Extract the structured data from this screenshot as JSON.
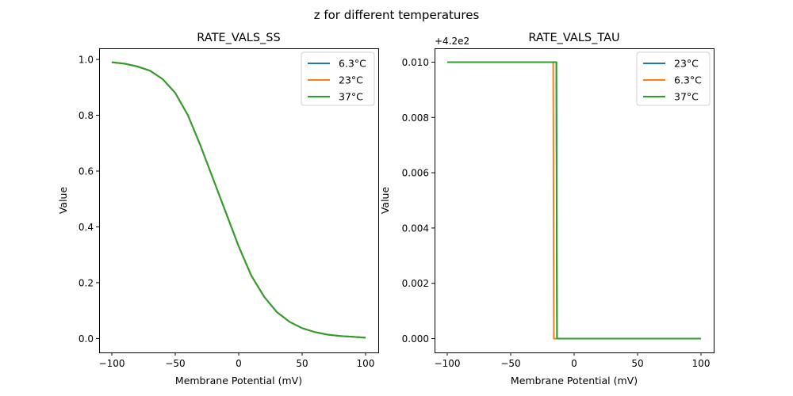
{
  "figure": {
    "suptitle": "z for different temperatures"
  },
  "chart_data": [
    {
      "type": "line",
      "title": "RATE_VALS_SS",
      "xlabel": "Membrane Potential (mV)",
      "ylabel": "Value",
      "xlim": [
        -110,
        110
      ],
      "ylim": [
        -0.05,
        1.04
      ],
      "xticks": [
        -100,
        -50,
        0,
        50,
        100
      ],
      "xtick_labels": [
        "−100",
        "−50",
        "0",
        "50",
        "100"
      ],
      "yticks": [
        0.0,
        0.2,
        0.4,
        0.6,
        0.8,
        1.0
      ],
      "ytick_labels": [
        "0.0",
        "0.2",
        "0.4",
        "0.6",
        "0.8",
        "1.0"
      ],
      "offset_text": "",
      "legend_position": "top-right",
      "x": [
        -100,
        -90,
        -80,
        -70,
        -60,
        -50,
        -40,
        -30,
        -20,
        -10,
        0,
        10,
        20,
        30,
        40,
        50,
        60,
        70,
        80,
        90,
        100
      ],
      "series": [
        {
          "name": "6.3°C",
          "color": "#1f77b4",
          "values": [
            0.99,
            0.985,
            0.975,
            0.96,
            0.93,
            0.88,
            0.8,
            0.69,
            0.57,
            0.45,
            0.33,
            0.225,
            0.15,
            0.095,
            0.06,
            0.037,
            0.023,
            0.014,
            0.009,
            0.006,
            0.003
          ]
        },
        {
          "name": "23°C",
          "color": "#ff7f0e",
          "values": [
            0.99,
            0.985,
            0.975,
            0.96,
            0.93,
            0.88,
            0.8,
            0.69,
            0.57,
            0.45,
            0.33,
            0.225,
            0.15,
            0.095,
            0.06,
            0.037,
            0.023,
            0.014,
            0.009,
            0.006,
            0.003
          ]
        },
        {
          "name": "37°C",
          "color": "#2ca02c",
          "values": [
            0.99,
            0.985,
            0.975,
            0.96,
            0.93,
            0.88,
            0.8,
            0.69,
            0.57,
            0.45,
            0.33,
            0.225,
            0.15,
            0.095,
            0.06,
            0.037,
            0.023,
            0.014,
            0.009,
            0.006,
            0.003
          ]
        }
      ]
    },
    {
      "type": "line",
      "title": "RATE_VALS_TAU",
      "xlabel": "Membrane Potential (mV)",
      "ylabel": "Value",
      "xlim": [
        -110,
        110
      ],
      "ylim": [
        -0.0005,
        0.0105
      ],
      "xticks": [
        -100,
        -50,
        0,
        50,
        100
      ],
      "xtick_labels": [
        "−100",
        "−50",
        "0",
        "50",
        "100"
      ],
      "yticks": [
        0.0,
        0.002,
        0.004,
        0.006,
        0.008,
        0.01
      ],
      "ytick_labels": [
        "0.000",
        "0.002",
        "0.004",
        "0.006",
        "0.008",
        "0.010"
      ],
      "offset_text": "+4.2e2",
      "legend_position": "top-right",
      "series": [
        {
          "name": "23°C",
          "color": "#1f77b4",
          "x": [
            -100,
            -14,
            -13.5,
            100
          ],
          "values": [
            0.01,
            0.01,
            0.0,
            0.0
          ]
        },
        {
          "name": "6.3°C",
          "color": "#ff7f0e",
          "x": [
            -100,
            -16.5,
            -16,
            100
          ],
          "values": [
            0.01,
            0.01,
            0.0,
            0.0
          ]
        },
        {
          "name": "37°C",
          "color": "#2ca02c",
          "x": [
            -100,
            -14,
            -13.5,
            100
          ],
          "values": [
            0.01,
            0.01,
            0.0,
            0.0
          ]
        }
      ]
    }
  ]
}
